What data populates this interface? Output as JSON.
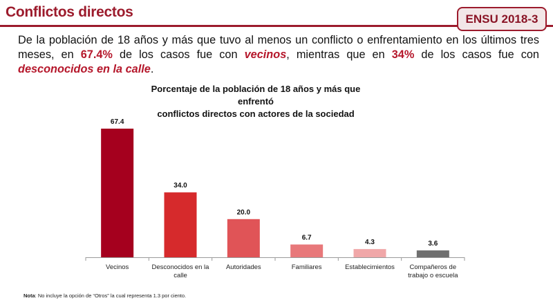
{
  "header": {
    "title": "Conflictos directos",
    "badge": "ENSU 2018-3"
  },
  "summary": {
    "part1": "De la población de 18 años y más que tuvo al menos un conflicto o enfrentamiento en los últimos tres meses, en ",
    "pct1": "67.4%",
    "part2": " de los casos fue con ",
    "actor1": "vecinos",
    "part3": ", mientras que en ",
    "pct2": "34%",
    "part4": " de los casos fue con ",
    "actor2": "desconocidos en la calle",
    "part5": "."
  },
  "chart_data": {
    "type": "bar",
    "title_line1": "Porcentaje de la población de 18 años y más que enfrentó",
    "title_line2": "conflictos directos con actores de la sociedad",
    "categories": [
      [
        "Vecinos"
      ],
      [
        "Desconocidos en la",
        "calle"
      ],
      [
        "Autoridades"
      ],
      [
        "Familiares"
      ],
      [
        "Establecimientos"
      ],
      [
        "Compañeros de",
        "trabajo o escuela"
      ]
    ],
    "values": [
      67.4,
      34.0,
      20.0,
      6.7,
      4.3,
      3.6
    ],
    "value_labels": [
      "67.4",
      "34.0",
      "20.0",
      "6.7",
      "4.3",
      "3.6"
    ],
    "colors": [
      "#a5001e",
      "#d62a2c",
      "#e05457",
      "#e8787a",
      "#f0a7a8",
      "#6f6f6f"
    ],
    "ylim": [
      0,
      67.4
    ],
    "grid": false
  },
  "note": {
    "label": "Nota",
    "text": ": No incluye la opción de “Otros” la cual representa 1.3 por ciento."
  }
}
